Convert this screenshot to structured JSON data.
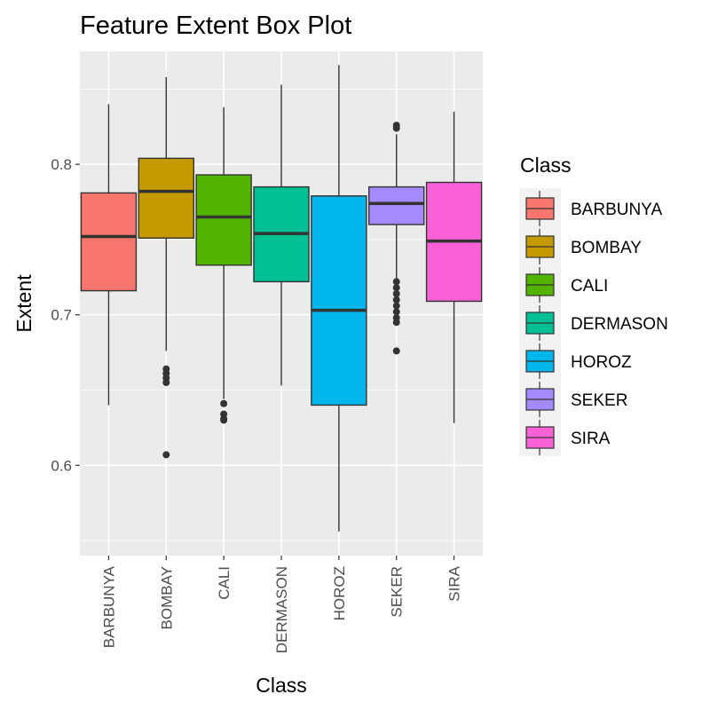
{
  "chart_data": {
    "type": "box",
    "title": "Feature Extent Box Plot",
    "xlabel": "Class",
    "ylabel": "Extent",
    "ylim": [
      0.54,
      0.875
    ],
    "yticks": [
      0.6,
      0.7,
      0.8
    ],
    "ytick_labels": [
      "0.6",
      "0.7",
      "0.8"
    ],
    "grid": true,
    "legend": {
      "title": "Class",
      "placement": "right"
    },
    "categories": [
      "BARBUNYA",
      "BOMBAY",
      "CALI",
      "DERMASON",
      "HOROZ",
      "SEKER",
      "SIRA"
    ],
    "colors": [
      "#F8766D",
      "#C49A00",
      "#53B400",
      "#00C094",
      "#00B6EB",
      "#A58AFF",
      "#FB61D7"
    ],
    "boxes": [
      {
        "whisker_low": 0.64,
        "q1": 0.716,
        "median": 0.752,
        "q3": 0.781,
        "whisker_high": 0.84,
        "outliers": []
      },
      {
        "whisker_low": 0.676,
        "q1": 0.751,
        "median": 0.782,
        "q3": 0.804,
        "whisker_high": 0.858,
        "outliers": [
          0.664,
          0.661,
          0.658,
          0.655,
          0.607
        ]
      },
      {
        "whisker_low": 0.644,
        "q1": 0.733,
        "median": 0.765,
        "q3": 0.793,
        "whisker_high": 0.838,
        "outliers": [
          0.641,
          0.634,
          0.631,
          0.63
        ]
      },
      {
        "whisker_low": 0.653,
        "q1": 0.722,
        "median": 0.754,
        "q3": 0.785,
        "whisker_high": 0.853,
        "outliers": []
      },
      {
        "whisker_low": 0.556,
        "q1": 0.64,
        "median": 0.703,
        "q3": 0.779,
        "whisker_high": 0.866,
        "outliers": []
      },
      {
        "whisker_low": 0.724,
        "q1": 0.76,
        "median": 0.774,
        "q3": 0.785,
        "whisker_high": 0.82,
        "outliers": [
          0.826,
          0.824,
          0.722,
          0.718,
          0.714,
          0.71,
          0.706,
          0.702,
          0.698,
          0.695,
          0.676
        ]
      },
      {
        "whisker_low": 0.628,
        "q1": 0.709,
        "median": 0.749,
        "q3": 0.788,
        "whisker_high": 0.835,
        "outliers": []
      }
    ]
  }
}
